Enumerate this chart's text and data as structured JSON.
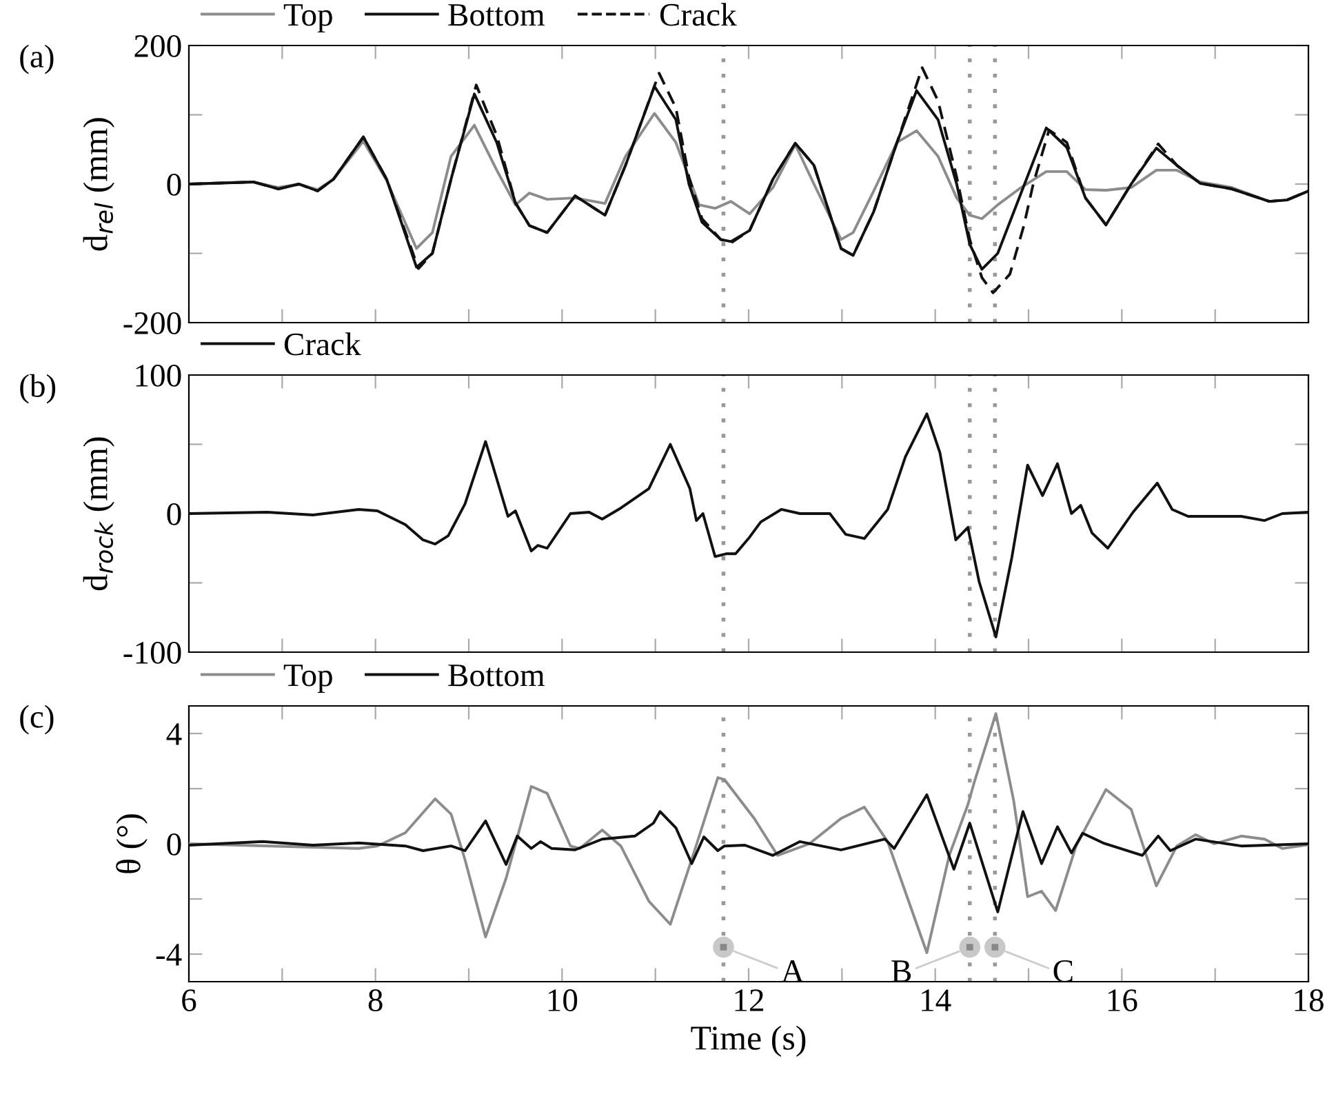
{
  "chart_data": [
    {
      "type": "line",
      "title": "(a)",
      "ylabel": "d$_{rel}$ (mm)",
      "legend": "top left",
      "tick_labels": "y",
      "grid": false,
      "xlim": [
        6,
        18
      ],
      "xticks": [
        6,
        {
          "value": 7,
          "label": null
        },
        8,
        {
          "value": 9,
          "label": null
        },
        10,
        {
          "value": 11,
          "label": null
        },
        12,
        {
          "value": 13,
          "label": null
        },
        14,
        {
          "value": 15,
          "label": null
        },
        16,
        {
          "value": 17,
          "label": null
        },
        18
      ],
      "ylim": [
        -200,
        200
      ],
      "yticks": [
        -200,
        {
          "value": -100,
          "label": null
        },
        0,
        {
          "value": 100,
          "label": null
        },
        200
      ],
      "ref_lines": [
        {
          "axis": "x",
          "value": 11.73,
          "color": "#999999",
          "line_style": "dotted"
        },
        {
          "axis": "x",
          "value": 14.37,
          "color": "#999999",
          "line_style": "dotted"
        },
        {
          "axis": "x",
          "value": 14.64,
          "color": "#999999",
          "line_style": "dotted"
        }
      ],
      "series": [
        {
          "name": "Top",
          "color": "#8c8c8c",
          "line_style": "solid",
          "x": [
            6,
            6.69,
            6.96,
            7.18,
            7.38,
            7.55,
            7.87,
            8.12,
            8.44,
            8.61,
            8.81,
            9.06,
            9.3,
            9.5,
            9.65,
            9.84,
            10.14,
            10.46,
            10.68,
            10.99,
            11.22,
            11.47,
            11.64,
            11.81,
            12.01,
            12.26,
            12.5,
            12.7,
            12.99,
            13.12,
            13.34,
            13.59,
            13.8,
            14.03,
            14.23,
            14.37,
            14.5,
            14.67,
            14.92,
            15.19,
            15.41,
            15.61,
            15.83,
            16.1,
            16.37,
            16.59,
            16.84,
            17.18,
            17.58,
            17.77,
            18
          ],
          "values": [
            0,
            3,
            -5,
            0,
            -8,
            7,
            62,
            5,
            -93,
            -70,
            40,
            85,
            20,
            -30,
            -13,
            -22,
            -20,
            -28,
            40,
            102,
            60,
            -30,
            -35,
            -25,
            -43,
            -5,
            57,
            0,
            -80,
            -70,
            -10,
            60,
            77,
            40,
            -20,
            -45,
            -50,
            -30,
            -5,
            18,
            18,
            -8,
            -9,
            -5,
            20,
            20,
            3,
            -5,
            -25,
            -23,
            -10
          ]
        },
        {
          "name": "Bottom",
          "color": "#111111",
          "line_style": "solid",
          "x": [
            6,
            6.69,
            6.96,
            7.18,
            7.38,
            7.55,
            7.87,
            8.12,
            8.44,
            8.61,
            8.81,
            9.06,
            9.3,
            9.5,
            9.65,
            9.84,
            10.14,
            10.46,
            10.68,
            10.99,
            11.22,
            11.36,
            11.5,
            11.7,
            11.81,
            12.01,
            12.26,
            12.5,
            12.7,
            12.99,
            13.12,
            13.34,
            13.59,
            13.8,
            14.03,
            14.23,
            14.37,
            14.5,
            14.67,
            14.92,
            15.19,
            15.41,
            15.61,
            15.83,
            16.1,
            16.37,
            16.59,
            16.84,
            17.18,
            17.58,
            17.77,
            18
          ],
          "values": [
            0,
            3,
            -7,
            0,
            -10,
            7,
            68,
            7,
            -120,
            -100,
            7,
            130,
            60,
            -27,
            -60,
            -70,
            -17,
            -45,
            27,
            141,
            93,
            0,
            -55,
            -80,
            -83,
            -67,
            7,
            59,
            27,
            -93,
            -103,
            -40,
            60,
            135,
            93,
            0,
            -87,
            -123,
            -100,
            -13,
            81,
            53,
            -20,
            -59,
            0,
            52,
            27,
            1,
            -7,
            -25,
            -23,
            -10
          ]
        },
        {
          "name": "Crack",
          "color": "#111111",
          "line_style": "dashed",
          "x": [
            6,
            6.69,
            6.96,
            7.18,
            7.38,
            7.55,
            7.87,
            8.12,
            8.46,
            8.61,
            8.81,
            9.08,
            9.3,
            9.5,
            9.65,
            9.84,
            10.14,
            10.46,
            10.68,
            11.04,
            11.22,
            11.36,
            11.5,
            11.7,
            11.81,
            12.01,
            12.26,
            12.5,
            12.7,
            12.99,
            13.12,
            13.34,
            13.59,
            13.86,
            14.03,
            14.23,
            14.37,
            14.5,
            14.62,
            14.8,
            14.95,
            15.05,
            15.22,
            15.41,
            15.61,
            15.83,
            16.1,
            16.39,
            16.59,
            16.84,
            17.18,
            17.58,
            17.77,
            18
          ],
          "values": [
            0,
            3,
            -7,
            0,
            -10,
            7,
            68,
            7,
            -122,
            -100,
            7,
            143,
            70,
            -27,
            -60,
            -70,
            -17,
            -45,
            27,
            160,
            110,
            10,
            -50,
            -80,
            -85,
            -67,
            7,
            59,
            27,
            -93,
            -103,
            -40,
            60,
            168,
            120,
            10,
            -80,
            -135,
            -157,
            -130,
            -60,
            0,
            78,
            60,
            -20,
            -59,
            0,
            58,
            27,
            1,
            -7,
            -25,
            -23,
            -10
          ]
        }
      ]
    },
    {
      "type": "line",
      "title": "(b)",
      "ylabel": "d$_{rock}$ (mm)",
      "legend": "top left",
      "tick_labels": "y",
      "grid": false,
      "xlim": [
        6,
        18
      ],
      "xticks": [
        6,
        {
          "value": 7,
          "label": null
        },
        8,
        {
          "value": 9,
          "label": null
        },
        10,
        {
          "value": 11,
          "label": null
        },
        12,
        {
          "value": 13,
          "label": null
        },
        14,
        {
          "value": 15,
          "label": null
        },
        16,
        {
          "value": 17,
          "label": null
        },
        18
      ],
      "ylim": [
        -100,
        100
      ],
      "yticks": [
        -100,
        {
          "value": -50,
          "label": null
        },
        0,
        {
          "value": 50,
          "label": null
        },
        100
      ],
      "ref_lines": [
        {
          "axis": "x",
          "value": 11.73,
          "color": "#999999",
          "line_style": "dotted"
        },
        {
          "axis": "x",
          "value": 14.37,
          "color": "#999999",
          "line_style": "dotted"
        },
        {
          "axis": "x",
          "value": 14.64,
          "color": "#999999",
          "line_style": "dotted"
        }
      ],
      "series": [
        {
          "name": "Crack",
          "color": "#111111",
          "line_style": "solid",
          "x": [
            6,
            6.84,
            7.33,
            7.82,
            8.02,
            8.32,
            8.51,
            8.64,
            8.78,
            8.96,
            9.18,
            9.42,
            9.5,
            9.67,
            9.74,
            9.84,
            10.09,
            10.29,
            10.43,
            10.63,
            10.93,
            11.16,
            11.37,
            11.44,
            11.51,
            11.64,
            11.76,
            11.86,
            12.01,
            12.13,
            12.35,
            12.55,
            12.87,
            13.04,
            13.24,
            13.49,
            13.68,
            13.91,
            14.05,
            14.22,
            14.35,
            14.47,
            14.65,
            14.82,
            14.99,
            15.15,
            15.31,
            15.46,
            15.56,
            15.68,
            15.85,
            16.12,
            16.38,
            16.54,
            16.71,
            17.28,
            17.53,
            17.72,
            18
          ],
          "values": [
            0,
            1,
            -1,
            3,
            2,
            -8,
            -19,
            -22,
            -16,
            7,
            52,
            -2,
            2,
            -27,
            -23,
            -25,
            0,
            1,
            -4,
            4,
            18,
            50,
            18,
            -5,
            0,
            -31,
            -29,
            -29,
            -17,
            -6,
            3,
            0,
            0,
            -15,
            -18,
            3,
            41,
            72,
            44,
            -19,
            -10,
            -49,
            -89,
            -32,
            35,
            13,
            36,
            0,
            6,
            -14,
            -25,
            1,
            22,
            3,
            -2,
            -2,
            -5,
            0,
            1
          ]
        }
      ]
    },
    {
      "type": "line",
      "title": "(c)",
      "ylabel": "θ (°)",
      "xlabel": "Time (s)",
      "legend": "top left",
      "grid": false,
      "xlim": [
        6,
        18
      ],
      "xticks": [
        6,
        {
          "value": 7,
          "label": null
        },
        8,
        {
          "value": 9,
          "label": null
        },
        10,
        {
          "value": 11,
          "label": null
        },
        12,
        {
          "value": 13,
          "label": null
        },
        14,
        {
          "value": 15,
          "label": null
        },
        16,
        {
          "value": 17,
          "label": null
        },
        18
      ],
      "ylim": [
        -5,
        5
      ],
      "yticks": [
        -4,
        {
          "value": -2,
          "label": null
        },
        0,
        {
          "value": 2,
          "label": null
        },
        4
      ],
      "ref_lines": [
        {
          "axis": "x",
          "value": 11.73,
          "color": "#999999",
          "line_style": "dotted"
        },
        {
          "axis": "x",
          "value": 14.37,
          "color": "#999999",
          "line_style": "dotted"
        },
        {
          "axis": "x",
          "value": 14.64,
          "color": "#999999",
          "line_style": "dotted"
        }
      ],
      "annotations": [
        {
          "text": "A",
          "x": 11.73,
          "y": -3.75
        },
        {
          "text": "B",
          "x": 14.37,
          "y": -3.75
        },
        {
          "text": "C",
          "x": 14.64,
          "y": -3.75
        }
      ],
      "series": [
        {
          "name": "Top",
          "color": "#8c8c8c",
          "line_style": "solid",
          "x": [
            6,
            7.82,
            8.02,
            8.32,
            8.64,
            8.81,
            8.96,
            9.18,
            9.4,
            9.67,
            9.84,
            10.09,
            10.19,
            10.43,
            10.63,
            10.93,
            11.16,
            11.42,
            11.67,
            11.74,
            12.06,
            12.31,
            12.65,
            12.99,
            13.24,
            13.49,
            13.68,
            13.91,
            14.15,
            14.35,
            14.42,
            14.65,
            14.84,
            14.99,
            15.14,
            15.29,
            15.51,
            15.83,
            16.1,
            16.37,
            16.59,
            16.79,
            16.99,
            17.28,
            17.53,
            17.72,
            18
          ],
          "values": [
            0,
            -0.17,
            -0.08,
            0.4,
            1.63,
            1.08,
            -0.58,
            -3.38,
            -1.25,
            2.08,
            1.83,
            -0.08,
            -0.17,
            0.5,
            -0.08,
            -2.08,
            -2.92,
            -0.25,
            2.4,
            2.33,
            0.92,
            -0.42,
            0,
            0.92,
            1.33,
            0.08,
            -1.75,
            -3.95,
            -0.42,
            1.42,
            2.25,
            4.72,
            1.58,
            -1.92,
            -1.72,
            -2.42,
            -0.08,
            1.97,
            1.25,
            -1.53,
            -0.08,
            0.33,
            0,
            0.28,
            0.17,
            -0.17,
            -0.03
          ]
        },
        {
          "name": "Bottom",
          "color": "#111111",
          "line_style": "solid",
          "x": [
            6,
            6.79,
            7.33,
            7.82,
            8.32,
            8.51,
            8.81,
            8.96,
            9.18,
            9.4,
            9.52,
            9.67,
            9.77,
            9.89,
            10.14,
            10.43,
            10.78,
            10.98,
            11.05,
            11.22,
            11.39,
            11.52,
            11.67,
            11.74,
            11.96,
            12.26,
            12.55,
            12.99,
            13.46,
            13.56,
            13.91,
            14.2,
            14.37,
            14.67,
            14.94,
            15.14,
            15.31,
            15.46,
            15.58,
            15.8,
            16.22,
            16.39,
            16.52,
            16.79,
            17.28,
            18
          ],
          "values": [
            -0.05,
            0.08,
            -0.05,
            0.03,
            -0.08,
            -0.25,
            -0.08,
            -0.25,
            0.83,
            -0.75,
            0.28,
            -0.17,
            0.08,
            -0.17,
            -0.22,
            0.17,
            0.28,
            0.75,
            1.17,
            0.58,
            -0.72,
            0.25,
            -0.25,
            -0.08,
            -0.05,
            -0.42,
            0.08,
            -0.22,
            0.17,
            -0.17,
            1.78,
            -0.92,
            0.75,
            -2.47,
            1.17,
            -0.72,
            0.62,
            -0.33,
            0.38,
            0.03,
            -0.42,
            0.28,
            -0.25,
            0.17,
            -0.08,
            0
          ]
        }
      ]
    }
  ]
}
